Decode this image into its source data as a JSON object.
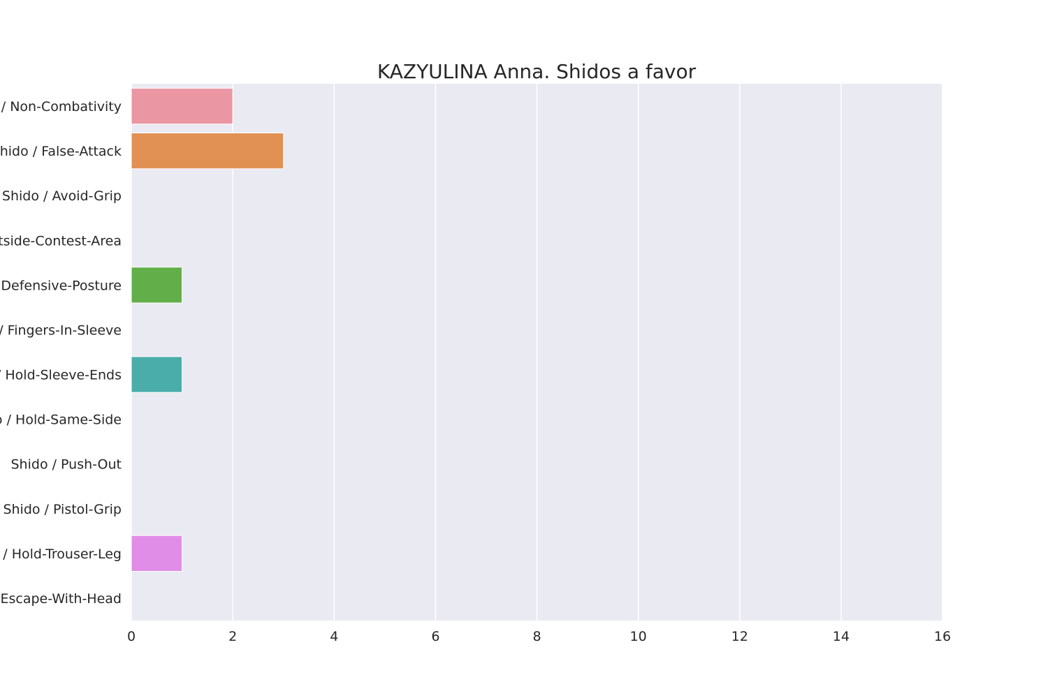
{
  "chart_data": {
    "type": "bar",
    "orientation": "horizontal",
    "title": "KAZYULINA Anna. Shidos a favor",
    "xlabel": "",
    "ylabel": "",
    "xlim": [
      0,
      16
    ],
    "x_ticks": [
      0,
      2,
      4,
      6,
      8,
      10,
      12,
      14,
      16
    ],
    "grid": true,
    "categories": [
      "Shido / Non-Combativity",
      "Shido / False-Attack",
      "Shido / Avoid-Grip",
      "Shido / Outside-Contest-Area",
      "Shido / Defensive-Posture",
      "Shido / Fingers-In-Sleeve",
      "Shido / Hold-Sleeve-Ends",
      "Shido / Hold-Same-Side",
      "Shido / Push-Out",
      "Shido / Pistol-Grip",
      "Shido / Hold-Trouser-Leg",
      "Shido / Escape-With-Head"
    ],
    "values": [
      2,
      3,
      0,
      0,
      1,
      0,
      1,
      0,
      0,
      0,
      1,
      0
    ],
    "colors": [
      "#ea96a3",
      "#e19153",
      "#bba14a",
      "#8fad4b",
      "#62af4a",
      "#4eb08f",
      "#4badaa",
      "#4ca9c6",
      "#67a3e6",
      "#b294ea",
      "#e08de8",
      "#e891c6"
    ],
    "background_color": "#eaeaf2",
    "grid_color": "#ffffff"
  }
}
